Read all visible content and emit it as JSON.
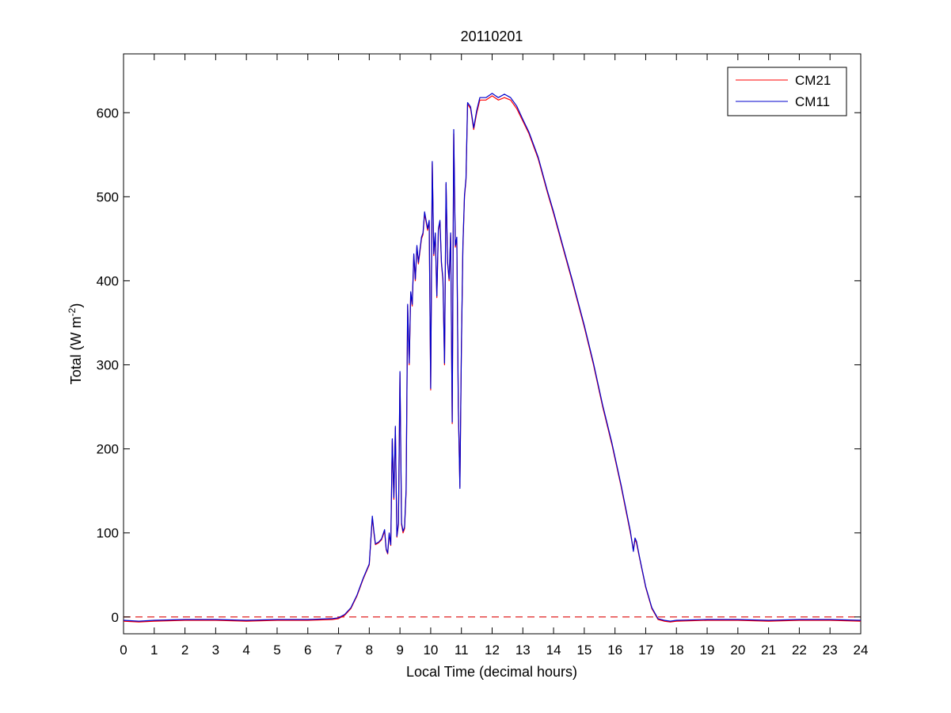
{
  "chart_data": {
    "type": "line",
    "title": "20110201",
    "xlabel": "Local Time (decimal hours)",
    "ylabel_prefix": "Total (W m",
    "ylabel_sup": "-2",
    "ylabel_suffix": ")",
    "xlim": [
      0,
      24
    ],
    "ylim": [
      -20,
      670
    ],
    "xticks": [
      0,
      1,
      2,
      3,
      4,
      5,
      6,
      7,
      8,
      9,
      10,
      11,
      12,
      13,
      14,
      15,
      16,
      17,
      18,
      19,
      20,
      21,
      22,
      23,
      24
    ],
    "yticks": [
      0,
      100,
      200,
      300,
      400,
      500,
      600
    ],
    "grid": false,
    "legend": "top-right",
    "reference_line": {
      "y": 0,
      "color": "#e02020",
      "style": "dashed"
    },
    "series": [
      {
        "name": "CM21",
        "color": "#ff0000",
        "x": [
          0,
          0.5,
          1,
          2,
          3,
          4,
          5,
          6,
          6.8,
          7.0,
          7.2,
          7.4,
          7.6,
          7.8,
          8.0,
          8.1,
          8.15,
          8.2,
          8.3,
          8.4,
          8.5,
          8.55,
          8.6,
          8.65,
          8.7,
          8.75,
          8.8,
          8.85,
          8.9,
          8.95,
          9.0,
          9.05,
          9.1,
          9.15,
          9.2,
          9.25,
          9.3,
          9.35,
          9.4,
          9.45,
          9.5,
          9.55,
          9.6,
          9.7,
          9.75,
          9.8,
          9.9,
          9.95,
          10.0,
          10.05,
          10.1,
          10.15,
          10.2,
          10.25,
          10.3,
          10.35,
          10.4,
          10.45,
          10.5,
          10.55,
          10.6,
          10.65,
          10.7,
          10.75,
          10.8,
          10.85,
          10.9,
          10.95,
          11.0,
          11.05,
          11.1,
          11.15,
          11.2,
          11.3,
          11.4,
          11.5,
          11.6,
          11.8,
          12.0,
          12.2,
          12.4,
          12.6,
          12.8,
          13.0,
          13.2,
          13.5,
          13.8,
          14.0,
          14.3,
          14.6,
          15.0,
          15.3,
          15.6,
          15.9,
          16.2,
          16.5,
          16.6,
          16.65,
          16.7,
          16.8,
          17.0,
          17.2,
          17.4,
          17.6,
          17.8,
          18.0,
          19,
          20,
          21,
          22,
          23,
          24
        ],
        "y": [
          -5,
          -6,
          -5,
          -4,
          -4,
          -5,
          -4,
          -4,
          -3,
          -2,
          2,
          10,
          25,
          45,
          62,
          118,
          100,
          86,
          88,
          92,
          102,
          80,
          75,
          98,
          85,
          210,
          140,
          225,
          95,
          110,
          290,
          110,
          100,
          105,
          150,
          370,
          300,
          385,
          370,
          430,
          400,
          440,
          420,
          450,
          455,
          480,
          460,
          470,
          270,
          540,
          430,
          455,
          380,
          460,
          470,
          420,
          400,
          300,
          515,
          420,
          400,
          455,
          230,
          575,
          440,
          450,
          250,
          155,
          320,
          440,
          500,
          520,
          610,
          605,
          580,
          600,
          615,
          615,
          620,
          615,
          618,
          615,
          605,
          590,
          575,
          545,
          505,
          480,
          440,
          400,
          345,
          300,
          250,
          205,
          155,
          100,
          80,
          92,
          88,
          70,
          35,
          10,
          -3,
          -5,
          -6,
          -5,
          -4,
          -4,
          -5,
          -4,
          -4,
          -5
        ]
      },
      {
        "name": "CM11",
        "color": "#0000cc",
        "x": [
          0,
          0.5,
          1,
          2,
          3,
          4,
          5,
          6,
          6.8,
          7.0,
          7.2,
          7.4,
          7.6,
          7.8,
          8.0,
          8.1,
          8.15,
          8.2,
          8.3,
          8.4,
          8.5,
          8.55,
          8.6,
          8.65,
          8.7,
          8.75,
          8.8,
          8.85,
          8.9,
          8.95,
          9.0,
          9.05,
          9.1,
          9.15,
          9.2,
          9.25,
          9.3,
          9.35,
          9.4,
          9.45,
          9.5,
          9.55,
          9.6,
          9.7,
          9.75,
          9.8,
          9.9,
          9.95,
          10.0,
          10.05,
          10.1,
          10.15,
          10.2,
          10.25,
          10.3,
          10.35,
          10.4,
          10.45,
          10.5,
          10.55,
          10.6,
          10.65,
          10.7,
          10.75,
          10.8,
          10.85,
          10.9,
          10.95,
          11.0,
          11.05,
          11.1,
          11.15,
          11.2,
          11.3,
          11.4,
          11.5,
          11.6,
          11.8,
          12.0,
          12.2,
          12.4,
          12.6,
          12.8,
          13.0,
          13.2,
          13.5,
          13.8,
          14.0,
          14.3,
          14.6,
          15.0,
          15.3,
          15.6,
          15.9,
          16.2,
          16.5,
          16.6,
          16.65,
          16.7,
          16.8,
          17.0,
          17.2,
          17.4,
          17.6,
          17.8,
          18.0,
          19,
          20,
          21,
          22,
          23,
          24
        ],
        "y": [
          -4,
          -5,
          -4,
          -3,
          -3,
          -4,
          -3,
          -3,
          -2,
          -1,
          3,
          11,
          26,
          46,
          63,
          120,
          102,
          87,
          89,
          93,
          104,
          81,
          76,
          100,
          86,
          212,
          142,
          227,
          96,
          112,
          292,
          112,
          102,
          107,
          152,
          372,
          302,
          387,
          372,
          432,
          402,
          442,
          422,
          452,
          457,
          482,
          462,
          472,
          272,
          542,
          432,
          457,
          382,
          462,
          472,
          422,
          402,
          302,
          517,
          422,
          402,
          457,
          232,
          580,
          442,
          452,
          252,
          153,
          322,
          442,
          502,
          522,
          612,
          607,
          582,
          603,
          618,
          618,
          623,
          618,
          622,
          618,
          608,
          592,
          577,
          547,
          507,
          482,
          442,
          402,
          347,
          302,
          252,
          207,
          157,
          102,
          78,
          94,
          90,
          71,
          36,
          11,
          -2,
          -4,
          -5,
          -4,
          -3,
          -3,
          -4,
          -3,
          -3,
          -4
        ]
      }
    ]
  }
}
